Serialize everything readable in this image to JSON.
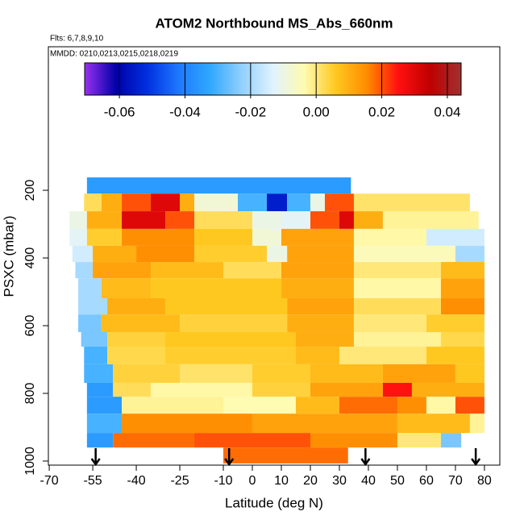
{
  "chart_data": {
    "type": "heatmap",
    "title": "ATOM2 Northbound MS_Abs_660nm",
    "annotations": [
      "Flts: 6,7,8,9,10",
      "MMDD: 0210,0213,0215,0218,0219"
    ],
    "x_label": "Latitude (deg N)",
    "y_label": "PSXC (mbar)",
    "xlim": [
      -70.3,
      85.3
    ],
    "xticks": [
      -70,
      -55,
      -40,
      -25,
      -10,
      0,
      10,
      20,
      30,
      40,
      50,
      60,
      70,
      80
    ],
    "ylim": [
      -224,
      1012
    ],
    "yticks": [
      200,
      400,
      600,
      800,
      1000
    ],
    "colorbar": {
      "lim": [
        -0.0706,
        0.0442
      ],
      "ticks": [
        -0.06,
        -0.04,
        -0.02,
        {
          "value": 0,
          "label": "0.00"
        },
        0.02,
        0.04
      ],
      "colors": [
        "#9a30f0",
        "#0000a8",
        "#0030e0",
        "#1e78ff",
        "#30a8ff",
        "#90d0ff",
        "#e0f2ff",
        "#fffbb0",
        "#ffc820",
        "#ff8c00",
        "#ff1010",
        "#c00000",
        "#a03030"
      ]
    },
    "arrows": [
      -54,
      -8,
      39,
      77
    ],
    "rows": [
      {
        "p": [
          162,
          210
        ],
        "cells": [
          [
            -57,
            34,
            -0.035
          ]
        ]
      },
      {
        "p": [
          210,
          262
        ],
        "cells": [
          [
            -58,
            -52,
            0.002
          ],
          [
            -52,
            -45,
            0.01
          ],
          [
            -45,
            -35,
            0.02
          ],
          [
            -35,
            -25,
            0.03
          ],
          [
            -25,
            -20,
            0.01
          ],
          [
            -20,
            -5,
            -0.008
          ],
          [
            -5,
            5,
            -0.03
          ],
          [
            5,
            12,
            -0.055
          ],
          [
            12,
            20,
            -0.03
          ],
          [
            20,
            25,
            -0.01
          ],
          [
            25,
            35,
            0.02
          ],
          [
            35,
            75,
            0.001
          ]
        ]
      },
      {
        "p": [
          262,
          314
        ],
        "cells": [
          [
            -63,
            -57,
            -0.01
          ],
          [
            -57,
            -45,
            0.01
          ],
          [
            -45,
            -30,
            0.03
          ],
          [
            -30,
            -20,
            0.02
          ],
          [
            -20,
            0,
            0.002
          ],
          [
            0,
            10,
            -0.01
          ],
          [
            10,
            20,
            -0.012
          ],
          [
            20,
            30,
            0.02
          ],
          [
            30,
            35,
            0.03
          ],
          [
            35,
            45,
            0.01
          ],
          [
            45,
            78,
            -0.002
          ]
        ]
      },
      {
        "p": [
          314,
          364
        ],
        "cells": [
          [
            -63,
            -57,
            -0.012
          ],
          [
            -57,
            -45,
            0.005
          ],
          [
            -45,
            -20,
            0.015
          ],
          [
            -20,
            0,
            0.006
          ],
          [
            0,
            10,
            -0.008
          ],
          [
            10,
            35,
            0.012
          ],
          [
            35,
            60,
            -0.003
          ],
          [
            60,
            80,
            -0.015
          ]
        ]
      },
      {
        "p": [
          364,
          412
        ],
        "cells": [
          [
            -62,
            -55,
            -0.015
          ],
          [
            -55,
            -40,
            0.01
          ],
          [
            -40,
            -20,
            0.015
          ],
          [
            -20,
            5,
            0.005
          ],
          [
            5,
            12,
            -0.01
          ],
          [
            12,
            35,
            0.012
          ],
          [
            35,
            70,
            -0.005
          ],
          [
            70,
            80,
            -0.02
          ]
        ]
      },
      {
        "p": [
          412,
          460
        ],
        "cells": [
          [
            -61,
            -55,
            -0.02
          ],
          [
            -55,
            -35,
            0.012
          ],
          [
            -35,
            -10,
            0.008
          ],
          [
            -10,
            10,
            0.002
          ],
          [
            10,
            35,
            0.012
          ],
          [
            35,
            65,
            0.0
          ],
          [
            65,
            80,
            0.008
          ]
        ]
      },
      {
        "p": [
          460,
          519
        ],
        "cells": [
          [
            -60,
            -52,
            -0.02
          ],
          [
            -52,
            -35,
            0.008
          ],
          [
            -35,
            10,
            0.006
          ],
          [
            10,
            35,
            0.01
          ],
          [
            35,
            65,
            -0.003
          ],
          [
            65,
            80,
            0.012
          ]
        ]
      },
      {
        "p": [
          519,
          567
        ],
        "cells": [
          [
            -60,
            -50,
            -0.02
          ],
          [
            -50,
            -30,
            0.01
          ],
          [
            -30,
            12,
            0.006
          ],
          [
            12,
            35,
            0.012
          ],
          [
            35,
            65,
            0.002
          ],
          [
            65,
            80,
            0.015
          ]
        ]
      },
      {
        "p": [
          567,
          619
        ],
        "cells": [
          [
            -60,
            -52,
            -0.025
          ],
          [
            -52,
            -25,
            0.008
          ],
          [
            -25,
            12,
            0.004
          ],
          [
            12,
            35,
            0.01
          ],
          [
            35,
            60,
            0.0
          ],
          [
            60,
            80,
            0.005
          ]
        ]
      },
      {
        "p": [
          619,
          662
        ],
        "cells": [
          [
            -59,
            -50,
            -0.025
          ],
          [
            -50,
            -30,
            0.004
          ],
          [
            -30,
            15,
            0.006
          ],
          [
            15,
            35,
            0.01
          ],
          [
            35,
            65,
            -0.002
          ],
          [
            65,
            80,
            0.003
          ]
        ]
      },
      {
        "p": [
          662,
          714
        ],
        "cells": [
          [
            -58,
            -50,
            -0.03
          ],
          [
            -50,
            -30,
            0.003
          ],
          [
            -30,
            15,
            0.005
          ],
          [
            15,
            30,
            0.008
          ],
          [
            30,
            60,
            0.0
          ],
          [
            60,
            80,
            0.006
          ]
        ]
      },
      {
        "p": [
          714,
          769
        ],
        "cells": [
          [
            -58,
            -48,
            -0.03
          ],
          [
            -48,
            -25,
            0.004
          ],
          [
            -25,
            0,
            0.001
          ],
          [
            0,
            20,
            0.005
          ],
          [
            20,
            45,
            0.008
          ],
          [
            45,
            70,
            0.012
          ],
          [
            70,
            80,
            0.006
          ]
        ]
      },
      {
        "p": [
          769,
          810
        ],
        "cells": [
          [
            -57,
            -48,
            -0.035
          ],
          [
            -48,
            -35,
            0.002
          ],
          [
            -35,
            0,
            -0.003
          ],
          [
            0,
            20,
            0.004
          ],
          [
            20,
            45,
            0.012
          ],
          [
            45,
            55,
            0.025
          ],
          [
            55,
            80,
            0.01
          ]
        ]
      },
      {
        "p": [
          810,
          860
        ],
        "cells": [
          [
            -57,
            -45,
            -0.035
          ],
          [
            -45,
            -10,
            -0.002
          ],
          [
            -10,
            15,
            -0.004
          ],
          [
            15,
            30,
            0.008
          ],
          [
            30,
            50,
            0.018
          ],
          [
            50,
            60,
            0.015
          ],
          [
            60,
            70,
            -0.003
          ],
          [
            70,
            80,
            0.02
          ]
        ]
      },
      {
        "p": [
          860,
          917
        ],
        "cells": [
          [
            -57,
            -45,
            -0.03
          ],
          [
            -45,
            0,
            0.015
          ],
          [
            0,
            50,
            0.012
          ],
          [
            50,
            75,
            0.008
          ],
          [
            75,
            80,
            -0.002
          ]
        ]
      },
      {
        "p": [
          917,
          960
        ],
        "cells": [
          [
            -57,
            -48,
            -0.035
          ],
          [
            -48,
            -20,
            0.018
          ],
          [
            -20,
            20,
            0.02
          ],
          [
            20,
            50,
            0.015
          ],
          [
            50,
            65,
            0.0
          ],
          [
            65,
            72,
            -0.025
          ]
        ]
      },
      {
        "p": [
          960,
          1007
        ],
        "cells": [
          [
            -10,
            33,
            0.018
          ]
        ]
      }
    ]
  }
}
